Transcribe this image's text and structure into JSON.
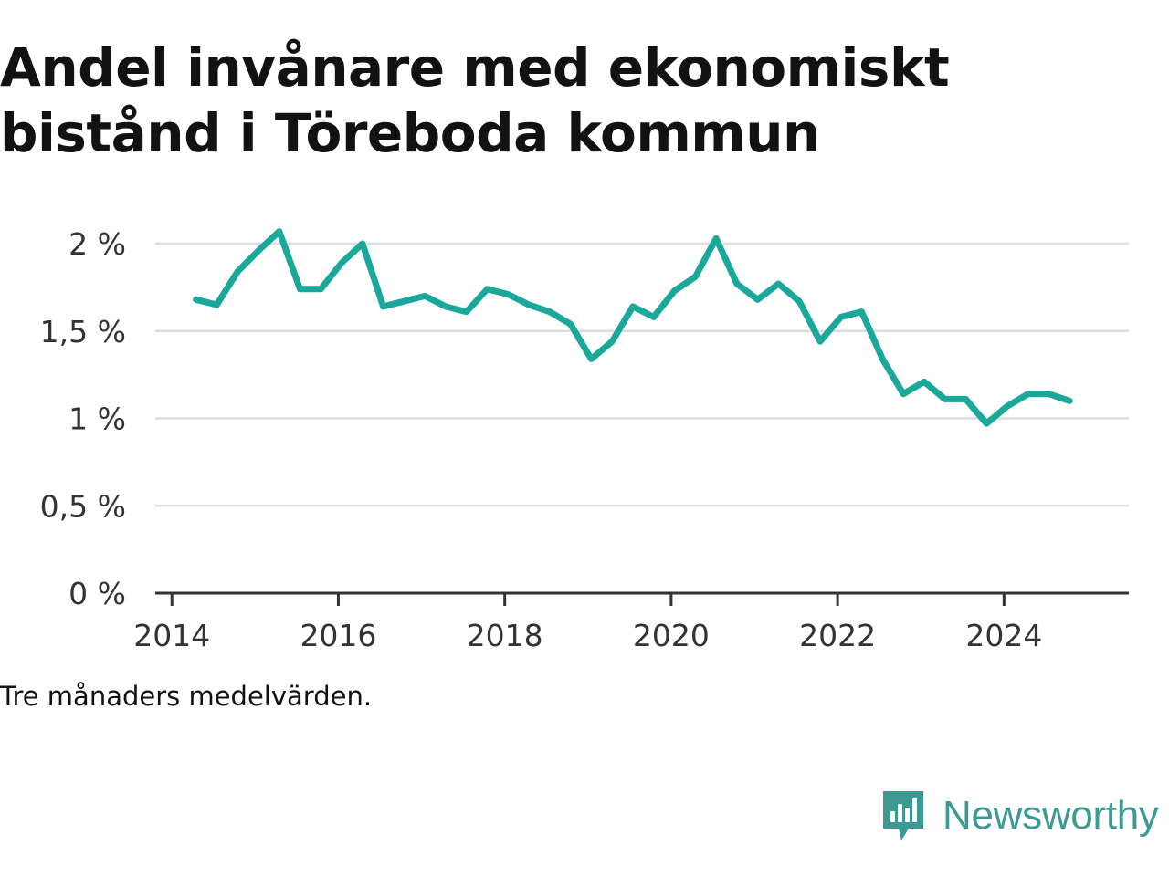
{
  "title": "Andel invånare med ekonomiskt bistånd i Töreboda kommun",
  "caption": "Tre månaders medelvärden.",
  "brand": {
    "name": "Newsworthy",
    "icon": "newsworthy-logo-icon",
    "color": "#3d9a93"
  },
  "colors": {
    "line": "#19a89a",
    "grid": "#dddddd",
    "axis": "#333333"
  },
  "chart_data": {
    "type": "line",
    "title": "Andel invånare med ekonomiskt bistånd i Töreboda kommun",
    "xlabel": "",
    "ylabel": "",
    "xlim": [
      2013.8,
      2025.5
    ],
    "ylim": [
      0,
      2
    ],
    "x_ticks": [
      2014,
      2016,
      2018,
      2020,
      2022,
      2024
    ],
    "y_ticks": [
      0,
      0.5,
      1,
      1.5,
      2
    ],
    "y_tick_labels": [
      "0 %",
      "0,5 %",
      "1 %",
      "1,5 %",
      "2 %"
    ],
    "grid": true,
    "legend": "none",
    "series": [
      {
        "x": [
          2014.29,
          2014.54,
          2014.79,
          2015.04,
          2015.29,
          2015.54,
          2015.79,
          2016.04,
          2016.29,
          2016.54,
          2016.79,
          2017.04,
          2017.29,
          2017.54,
          2017.79,
          2018.04,
          2018.29,
          2018.54,
          2018.79,
          2019.04,
          2019.29,
          2019.54,
          2019.79,
          2020.04,
          2020.29,
          2020.54,
          2020.79,
          2021.04,
          2021.29,
          2021.54,
          2021.79,
          2022.04,
          2022.29,
          2022.54,
          2022.79,
          2023.04,
          2023.29,
          2023.54,
          2023.79,
          2024.04,
          2024.29,
          2024.54,
          2024.79
        ],
        "values": [
          1.68,
          1.65,
          1.84,
          1.96,
          2.07,
          1.74,
          1.74,
          1.89,
          2.0,
          1.64,
          1.67,
          1.7,
          1.64,
          1.61,
          1.74,
          1.71,
          1.65,
          1.61,
          1.54,
          1.34,
          1.44,
          1.64,
          1.58,
          1.73,
          1.81,
          2.03,
          1.77,
          1.68,
          1.77,
          1.67,
          1.44,
          1.58,
          1.61,
          1.34,
          1.14,
          1.21,
          1.11,
          1.11,
          0.97,
          1.07,
          1.14,
          1.14,
          1.1
        ]
      }
    ]
  }
}
